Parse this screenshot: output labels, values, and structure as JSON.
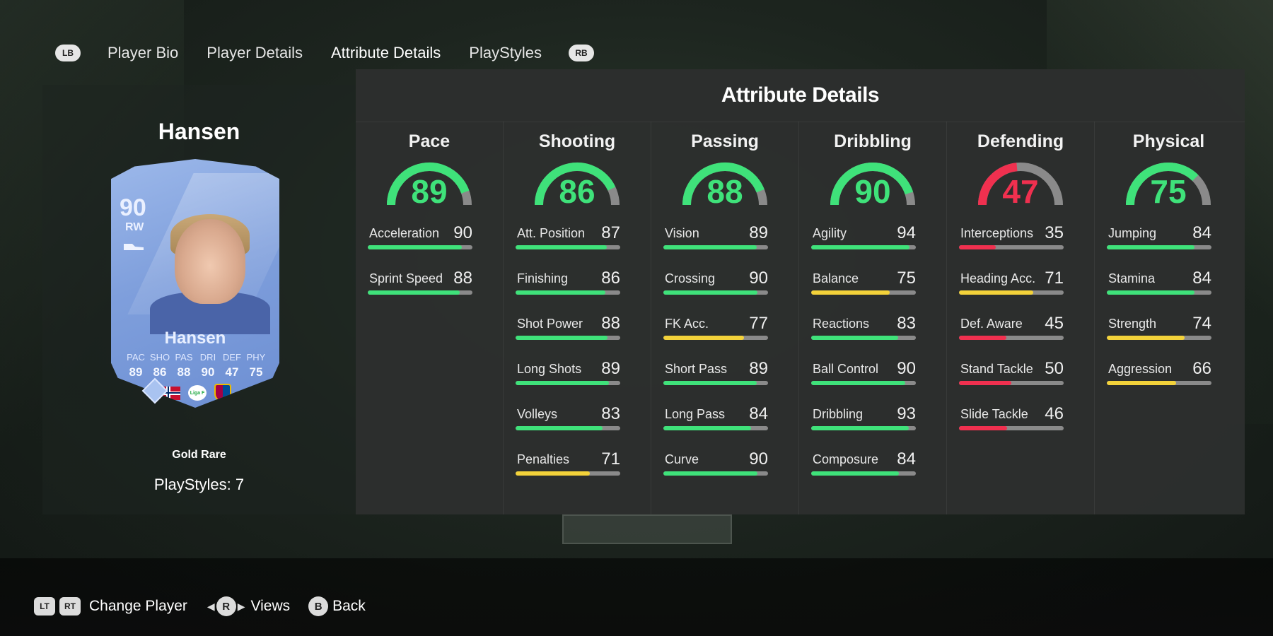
{
  "nav": {
    "left_button": "LB",
    "right_button": "RB",
    "tabs": [
      {
        "label": "Player Bio"
      },
      {
        "label": "Player Details"
      },
      {
        "label": "Attribute Details",
        "active": true
      },
      {
        "label": "PlayStyles"
      }
    ]
  },
  "player": {
    "name": "Hansen",
    "card": {
      "rating": "90",
      "position": "RW",
      "name": "Hansen",
      "stat_labels": [
        "PAC",
        "SHO",
        "PAS",
        "DRI",
        "DEF",
        "PHY"
      ],
      "stat_values": [
        "89",
        "86",
        "88",
        "90",
        "47",
        "75"
      ],
      "league_badge": "Liga F",
      "color": "#86a6e0"
    },
    "rarity": "Gold Rare",
    "playstyles": "PlayStyles: 7"
  },
  "main": {
    "title": "Attribute Details",
    "colors": {
      "high": "#3fe27a",
      "mid": "#f3d23a",
      "low": "#f0304f",
      "track": "#8a8a8a"
    },
    "categories": [
      {
        "name": "Pace",
        "value": 89,
        "color": "high",
        "stats": [
          {
            "label": "Acceleration",
            "value": 90
          },
          {
            "label": "Sprint Speed",
            "value": 88
          }
        ]
      },
      {
        "name": "Shooting",
        "value": 86,
        "color": "high",
        "stats": [
          {
            "label": "Att. Position",
            "value": 87
          },
          {
            "label": "Finishing",
            "value": 86
          },
          {
            "label": "Shot Power",
            "value": 88
          },
          {
            "label": "Long Shots",
            "value": 89
          },
          {
            "label": "Volleys",
            "value": 83
          },
          {
            "label": "Penalties",
            "value": 71
          }
        ]
      },
      {
        "name": "Passing",
        "value": 88,
        "color": "high",
        "stats": [
          {
            "label": "Vision",
            "value": 89
          },
          {
            "label": "Crossing",
            "value": 90
          },
          {
            "label": "FK Acc.",
            "value": 77
          },
          {
            "label": "Short Pass",
            "value": 89
          },
          {
            "label": "Long Pass",
            "value": 84
          },
          {
            "label": "Curve",
            "value": 90
          }
        ]
      },
      {
        "name": "Dribbling",
        "value": 90,
        "color": "high",
        "stats": [
          {
            "label": "Agility",
            "value": 94
          },
          {
            "label": "Balance",
            "value": 75
          },
          {
            "label": "Reactions",
            "value": 83
          },
          {
            "label": "Ball Control",
            "value": 90
          },
          {
            "label": "Dribbling",
            "value": 93
          },
          {
            "label": "Composure",
            "value": 84
          }
        ]
      },
      {
        "name": "Defending",
        "value": 47,
        "color": "low",
        "stats": [
          {
            "label": "Interceptions",
            "value": 35
          },
          {
            "label": "Heading Acc.",
            "value": 71
          },
          {
            "label": "Def. Aware",
            "value": 45
          },
          {
            "label": "Stand Tackle",
            "value": 50
          },
          {
            "label": "Slide Tackle",
            "value": 46
          }
        ]
      },
      {
        "name": "Physical",
        "value": 75,
        "color": "high",
        "stats": [
          {
            "label": "Jumping",
            "value": 84
          },
          {
            "label": "Stamina",
            "value": 84
          },
          {
            "label": "Strength",
            "value": 74
          },
          {
            "label": "Aggression",
            "value": 66
          }
        ]
      }
    ]
  },
  "controls": {
    "lt": "LT",
    "rt": "RT",
    "change_player": "Change Player",
    "r_button": "R",
    "views": "Views",
    "b_button": "B",
    "back": "Back"
  }
}
